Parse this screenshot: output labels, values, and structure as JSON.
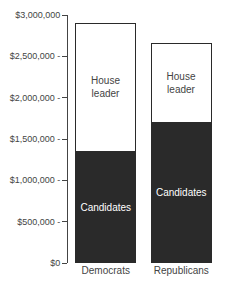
{
  "chart_data": {
    "type": "bar",
    "stacked": true,
    "categories": [
      "Democrats",
      "Republicans"
    ],
    "series": [
      {
        "name": "Candidates",
        "color": "#2a2a2a",
        "values": [
          1350000,
          1700000
        ]
      },
      {
        "name": "House\nleader",
        "color": "#ffffff",
        "values": [
          1550000,
          950000
        ]
      }
    ],
    "ylim": [
      0,
      3000000
    ],
    "yticks": [
      {
        "value": 0,
        "label": "$0"
      },
      {
        "value": 500000,
        "label": "$500,000 -"
      },
      {
        "value": 1000000,
        "label": "$1,000,000 -"
      },
      {
        "value": 1500000,
        "label": "$1,500,000 -"
      },
      {
        "value": 2000000,
        "label": "$2,000,000 -"
      },
      {
        "value": 2500000,
        "label": "$2,500,000 -"
      },
      {
        "value": 3000000,
        "label": "$3,000,000"
      }
    ],
    "grid": false
  }
}
